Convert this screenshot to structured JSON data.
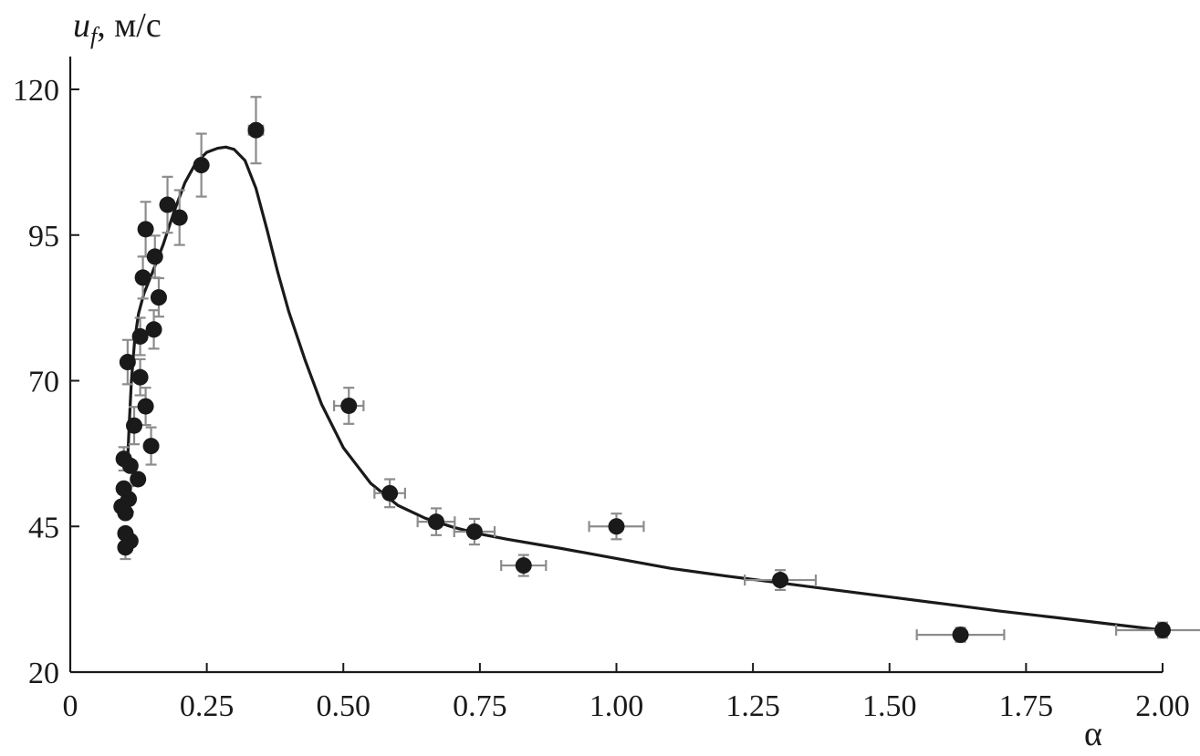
{
  "chart_data": {
    "type": "scatter",
    "xlabel": "α",
    "ylabel": {
      "var": "u",
      "sub": "f",
      "unit": ", м/с"
    },
    "xlim": [
      0,
      2.0
    ],
    "ylim": [
      20,
      126
    ],
    "xticks": [
      0,
      0.25,
      0.5,
      0.75,
      1.0,
      1.25,
      1.5,
      1.75,
      2.0
    ],
    "xtick_labels": [
      "0",
      "0.25",
      "0.50",
      "0.75",
      "1.00",
      "1.25",
      "1.50",
      "1.75",
      "2.00"
    ],
    "yticks": [
      20,
      45,
      70,
      95,
      120
    ],
    "ytick_labels": [
      "20",
      "45",
      "70",
      "95",
      "120"
    ],
    "grid": false,
    "legend": "none",
    "points": [
      {
        "x": 0.094,
        "y": 48.4,
        "xerr": 0.0,
        "yerr": 0.0
      },
      {
        "x": 0.098,
        "y": 51.5,
        "xerr": 0.0,
        "yerr": 0.0
      },
      {
        "x": 0.098,
        "y": 56.6,
        "xerr": 0.0,
        "yerr": 2.0
      },
      {
        "x": 0.101,
        "y": 47.3,
        "xerr": 0.0,
        "yerr": 0.0
      },
      {
        "x": 0.101,
        "y": 43.8,
        "xerr": 0.0,
        "yerr": 0.0
      },
      {
        "x": 0.101,
        "y": 41.4,
        "xerr": 0.0,
        "yerr": 2.0
      },
      {
        "x": 0.105,
        "y": 73.2,
        "xerr": 0.0,
        "yerr": 3.8
      },
      {
        "x": 0.107,
        "y": 49.7,
        "xerr": 0.0,
        "yerr": 2.2
      },
      {
        "x": 0.11,
        "y": 42.5,
        "xerr": 0.0,
        "yerr": 0.0
      },
      {
        "x": 0.11,
        "y": 55.4,
        "xerr": 0.0,
        "yerr": 0.0
      },
      {
        "x": 0.117,
        "y": 62.3,
        "xerr": 0.0,
        "yerr": 3.2
      },
      {
        "x": 0.124,
        "y": 53.1,
        "xerr": 0.0,
        "yerr": 0.0
      },
      {
        "x": 0.128,
        "y": 70.6,
        "xerr": 0.0,
        "yerr": 3.1
      },
      {
        "x": 0.128,
        "y": 77.6,
        "xerr": 0.0,
        "yerr": 3.2
      },
      {
        "x": 0.133,
        "y": 87.7,
        "xerr": 0.0,
        "yerr": 3.6
      },
      {
        "x": 0.138,
        "y": 96.0,
        "xerr": 0.0,
        "yerr": 4.7
      },
      {
        "x": 0.138,
        "y": 65.6,
        "xerr": 0.0,
        "yerr": 3.2
      },
      {
        "x": 0.148,
        "y": 58.8,
        "xerr": 0.0,
        "yerr": 3.2
      },
      {
        "x": 0.153,
        "y": 78.8,
        "xerr": 0.0,
        "yerr": 3.3
      },
      {
        "x": 0.155,
        "y": 91.3,
        "xerr": 0.0,
        "yerr": 3.6
      },
      {
        "x": 0.162,
        "y": 84.3,
        "xerr": 0.0,
        "yerr": 3.3
      },
      {
        "x": 0.178,
        "y": 100.2,
        "xerr": 0.0,
        "yerr": 4.8
      },
      {
        "x": 0.2,
        "y": 98.0,
        "xerr": 0.0,
        "yerr": 4.7
      },
      {
        "x": 0.24,
        "y": 107.0,
        "xerr": 0.0,
        "yerr": 5.4
      },
      {
        "x": 0.34,
        "y": 113.0,
        "xerr": 0.013,
        "yerr": 5.7
      },
      {
        "x": 0.51,
        "y": 65.7,
        "xerr": 0.027,
        "yerr": 3.1
      },
      {
        "x": 0.585,
        "y": 50.7,
        "xerr": 0.028,
        "yerr": 2.4
      },
      {
        "x": 0.67,
        "y": 45.8,
        "xerr": 0.034,
        "yerr": 2.3
      },
      {
        "x": 0.74,
        "y": 44.1,
        "xerr": 0.037,
        "yerr": 2.2
      },
      {
        "x": 0.83,
        "y": 38.3,
        "xerr": 0.041,
        "yerr": 1.8
      },
      {
        "x": 1.0,
        "y": 45.0,
        "xerr": 0.05,
        "yerr": 2.2
      },
      {
        "x": 1.3,
        "y": 35.8,
        "xerr": 0.065,
        "yerr": 1.7
      },
      {
        "x": 1.63,
        "y": 26.4,
        "xerr": 0.08,
        "yerr": 1.2
      },
      {
        "x": 2.0,
        "y": 27.2,
        "xerr": 0.085,
        "yerr": 1.3
      }
    ],
    "fit_curve": {
      "x": [
        0.105,
        0.108,
        0.112,
        0.118,
        0.125,
        0.135,
        0.15,
        0.17,
        0.19,
        0.21,
        0.23,
        0.25,
        0.27,
        0.285,
        0.3,
        0.32,
        0.34,
        0.36,
        0.38,
        0.4,
        0.43,
        0.46,
        0.5,
        0.55,
        0.6,
        0.65,
        0.7,
        0.75,
        0.8,
        0.9,
        1.0,
        1.1,
        1.2,
        1.3,
        1.4,
        1.5,
        1.6,
        1.7,
        1.8,
        1.9,
        2.0
      ],
      "y": [
        56.0,
        62.5,
        70.0,
        77.0,
        81.5,
        85.0,
        88.5,
        93.3,
        99.0,
        104.0,
        107.4,
        109.2,
        109.9,
        110.1,
        109.7,
        107.8,
        103.0,
        96.0,
        88.6,
        81.9,
        73.5,
        66.0,
        58.5,
        52.4,
        48.6,
        46.4,
        44.9,
        43.7,
        42.8,
        41.2,
        39.5,
        37.8,
        36.5,
        35.3,
        34.1,
        32.9,
        31.7,
        30.5,
        29.4,
        28.3,
        27.2
      ]
    }
  }
}
